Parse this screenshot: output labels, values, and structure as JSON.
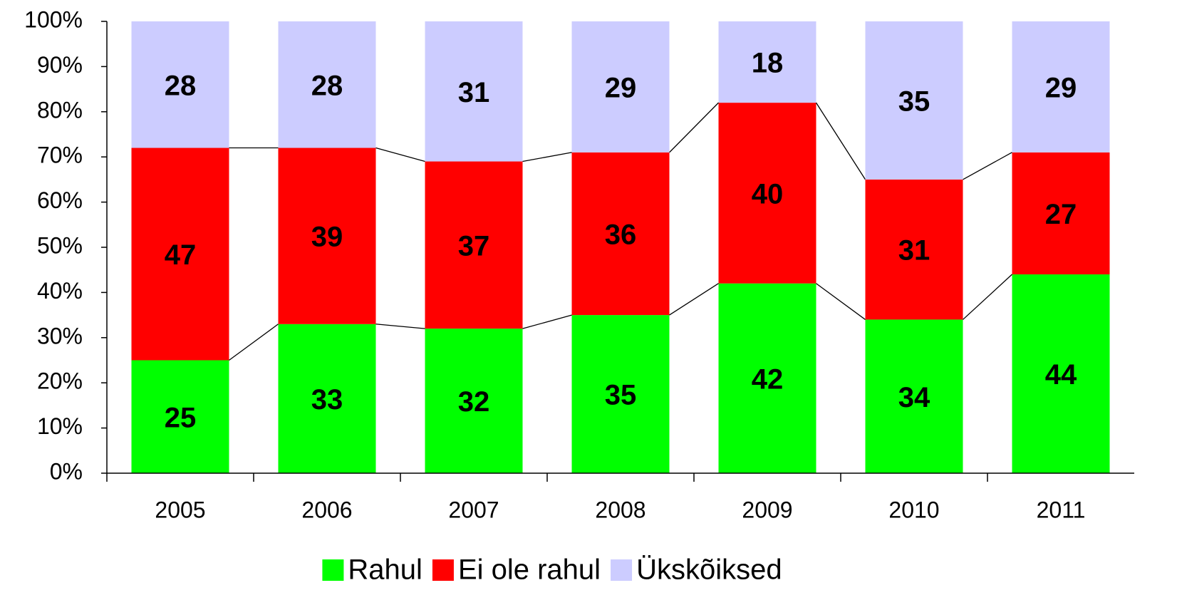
{
  "chart_data": {
    "type": "stacked_bar",
    "categories": [
      "2005",
      "2006",
      "2007",
      "2008",
      "2009",
      "2010",
      "2011"
    ],
    "series": [
      {
        "name": "Rahul",
        "color": "#00ff00",
        "values": [
          25,
          33,
          32,
          35,
          42,
          34,
          44
        ]
      },
      {
        "name": "Ei ole rahul",
        "color": "#ff0000",
        "values": [
          47,
          39,
          37,
          36,
          40,
          31,
          27
        ]
      },
      {
        "name": "Ükskõiksed",
        "color": "#ccccff",
        "values": [
          28,
          28,
          31,
          29,
          18,
          35,
          29
        ]
      }
    ],
    "ylim": [
      0,
      100
    ],
    "yticks": [
      {
        "value": 0,
        "label": "0%"
      },
      {
        "value": 10,
        "label": "10%"
      },
      {
        "value": 20,
        "label": "20%"
      },
      {
        "value": 30,
        "label": "30%"
      },
      {
        "value": 40,
        "label": "40%"
      },
      {
        "value": 50,
        "label": "50%"
      },
      {
        "value": 60,
        "label": "60%"
      },
      {
        "value": 70,
        "label": "70%"
      },
      {
        "value": 80,
        "label": "80%"
      },
      {
        "value": 90,
        "label": "90%"
      },
      {
        "value": 100,
        "label": "100%"
      }
    ],
    "legend": "bottom",
    "series_lines": true
  }
}
